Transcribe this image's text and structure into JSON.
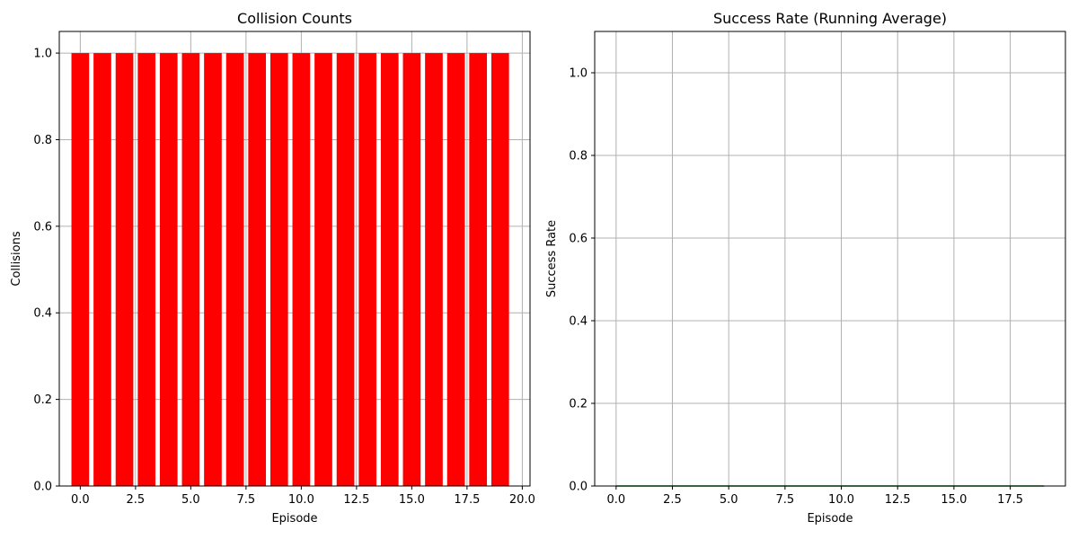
{
  "chart_data": [
    {
      "type": "bar",
      "title": "Collision Counts",
      "xlabel": "Episode",
      "ylabel": "Collisions",
      "x": [
        0,
        1,
        2,
        3,
        4,
        5,
        6,
        7,
        8,
        9,
        10,
        11,
        12,
        13,
        14,
        15,
        16,
        17,
        18,
        19
      ],
      "values": [
        1,
        1,
        1,
        1,
        1,
        1,
        1,
        1,
        1,
        1,
        1,
        1,
        1,
        1,
        1,
        1,
        1,
        1,
        1,
        1
      ],
      "bar_color": "#ff0000",
      "xlim": [
        -0.95,
        20.35
      ],
      "ylim": [
        0,
        1.05
      ],
      "xticks": [
        "0.0",
        "2.5",
        "5.0",
        "7.5",
        "10.0",
        "12.5",
        "15.0",
        "17.5",
        "20.0"
      ],
      "yticks": [
        "0.0",
        "0.2",
        "0.4",
        "0.6",
        "0.8",
        "1.0"
      ],
      "grid": true
    },
    {
      "type": "line",
      "title": "Success Rate (Running Average)",
      "xlabel": "Episode",
      "ylabel": "Success Rate",
      "x": [
        0,
        1,
        2,
        3,
        4,
        5,
        6,
        7,
        8,
        9,
        10,
        11,
        12,
        13,
        14,
        15,
        16,
        17,
        18,
        19
      ],
      "values": [
        0,
        0,
        0,
        0,
        0,
        0,
        0,
        0,
        0,
        0,
        0,
        0,
        0,
        0,
        0,
        0,
        0,
        0,
        0,
        0
      ],
      "line_color": "#008000",
      "xlim": [
        -0.95,
        19.95
      ],
      "ylim": [
        0,
        1.1
      ],
      "xticks": [
        "0.0",
        "2.5",
        "5.0",
        "7.5",
        "10.0",
        "12.5",
        "15.0",
        "17.5"
      ],
      "yticks": [
        "0.0",
        "0.2",
        "0.4",
        "0.6",
        "0.8",
        "1.0"
      ],
      "grid": true
    }
  ]
}
